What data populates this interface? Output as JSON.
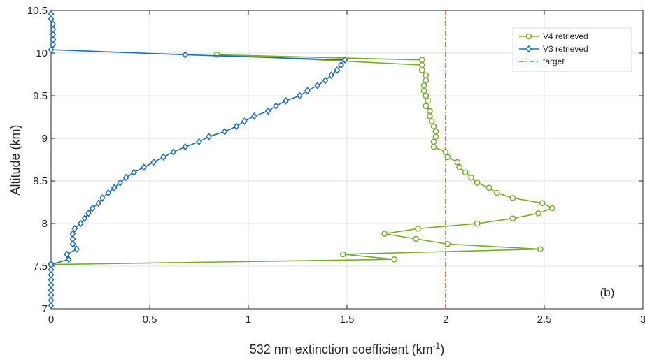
{
  "chart_data": {
    "type": "line",
    "xlabel_main": "532 nm extinction coefficient (km",
    "xlabel_sup": "-1",
    "xlabel_close": ")",
    "ylabel": "Altitude (km)",
    "panel_tag": "(b)",
    "xlim": [
      0,
      3
    ],
    "ylim": [
      7,
      10.5
    ],
    "xticks": [
      0,
      0.5,
      1,
      1.5,
      2,
      2.5,
      3
    ],
    "xtick_labels": [
      "0",
      "0.5",
      "1",
      "1.5",
      "2",
      "2.5",
      "3"
    ],
    "yticks": [
      7,
      7.5,
      8,
      8.5,
      9,
      9.5,
      10,
      10.5
    ],
    "ytick_labels": [
      "7",
      "7.5",
      "8",
      "8.5",
      "9",
      "9.5",
      "10",
      "10.5"
    ],
    "grid": true,
    "legend_position": "top-right",
    "series": [
      {
        "name": "V4 retrieved",
        "color": "#77ac30",
        "marker": "circle",
        "points": [
          [
            1.88,
            9.92
          ],
          [
            0.84,
            9.98
          ],
          [
            1.88,
            9.86
          ],
          [
            1.88,
            9.8
          ],
          [
            1.9,
            9.74
          ],
          [
            1.9,
            9.68
          ],
          [
            1.89,
            9.62
          ],
          [
            1.89,
            9.56
          ],
          [
            1.9,
            9.5
          ],
          [
            1.91,
            9.44
          ],
          [
            1.9,
            9.38
          ],
          [
            1.92,
            9.32
          ],
          [
            1.92,
            9.26
          ],
          [
            1.93,
            9.2
          ],
          [
            1.94,
            9.14
          ],
          [
            1.95,
            9.08
          ],
          [
            1.95,
            9.02
          ],
          [
            1.94,
            8.96
          ],
          [
            1.94,
            8.9
          ],
          [
            2.0,
            8.84
          ],
          [
            2.01,
            8.78
          ],
          [
            2.06,
            8.72
          ],
          [
            2.07,
            8.66
          ],
          [
            2.1,
            8.6
          ],
          [
            2.13,
            8.54
          ],
          [
            2.16,
            8.48
          ],
          [
            2.22,
            8.42
          ],
          [
            2.26,
            8.36
          ],
          [
            2.34,
            8.3
          ],
          [
            2.49,
            8.24
          ],
          [
            2.54,
            8.18
          ],
          [
            2.47,
            8.12
          ],
          [
            2.34,
            8.06
          ],
          [
            2.16,
            8.0
          ],
          [
            1.86,
            7.94
          ],
          [
            1.69,
            7.88
          ],
          [
            1.85,
            7.82
          ],
          [
            2.01,
            7.76
          ],
          [
            2.48,
            7.7
          ],
          [
            1.48,
            7.64
          ],
          [
            1.74,
            7.58
          ],
          [
            0.0,
            7.52
          ]
        ]
      },
      {
        "name": "V3 retrieved",
        "color": "#1f6fb5",
        "marker": "diamond",
        "points": [
          [
            0.0,
            7.04
          ],
          [
            0.0,
            7.1
          ],
          [
            0.0,
            7.16
          ],
          [
            0.0,
            7.22
          ],
          [
            0.0,
            7.28
          ],
          [
            0.0,
            7.34
          ],
          [
            0.0,
            7.4
          ],
          [
            0.0,
            7.46
          ],
          [
            0.0,
            7.52
          ],
          [
            0.09,
            7.58
          ],
          [
            0.08,
            7.64
          ],
          [
            0.13,
            7.7
          ],
          [
            0.11,
            7.76
          ],
          [
            0.11,
            7.82
          ],
          [
            0.11,
            7.88
          ],
          [
            0.12,
            7.94
          ],
          [
            0.15,
            8.0
          ],
          [
            0.17,
            8.06
          ],
          [
            0.19,
            8.12
          ],
          [
            0.21,
            8.18
          ],
          [
            0.24,
            8.24
          ],
          [
            0.26,
            8.3
          ],
          [
            0.29,
            8.36
          ],
          [
            0.32,
            8.42
          ],
          [
            0.35,
            8.48
          ],
          [
            0.38,
            8.54
          ],
          [
            0.42,
            8.6
          ],
          [
            0.47,
            8.66
          ],
          [
            0.52,
            8.72
          ],
          [
            0.57,
            8.78
          ],
          [
            0.62,
            8.84
          ],
          [
            0.68,
            8.9
          ],
          [
            0.75,
            8.96
          ],
          [
            0.8,
            9.02
          ],
          [
            0.88,
            9.08
          ],
          [
            0.94,
            9.14
          ],
          [
            0.98,
            9.2
          ],
          [
            1.03,
            9.26
          ],
          [
            1.1,
            9.32
          ],
          [
            1.14,
            9.38
          ],
          [
            1.19,
            9.44
          ],
          [
            1.26,
            9.5
          ],
          [
            1.3,
            9.56
          ],
          [
            1.35,
            9.62
          ],
          [
            1.39,
            9.68
          ],
          [
            1.42,
            9.74
          ],
          [
            1.45,
            9.8
          ],
          [
            1.47,
            9.86
          ],
          [
            1.49,
            9.92
          ],
          [
            0.68,
            9.98
          ],
          [
            0.0,
            10.04
          ],
          [
            0.01,
            10.1
          ],
          [
            0.01,
            10.16
          ],
          [
            0.01,
            10.22
          ],
          [
            0.01,
            10.28
          ],
          [
            0.01,
            10.34
          ],
          [
            0.0,
            10.4
          ],
          [
            0.0,
            10.46
          ]
        ]
      }
    ],
    "target": {
      "name": "target",
      "x": 2.0,
      "color": "#d95319",
      "style": "dash-dot"
    }
  }
}
